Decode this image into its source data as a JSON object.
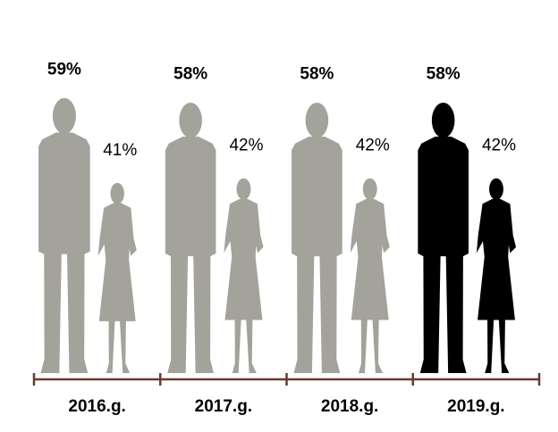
{
  "chart_data": {
    "type": "pictograph",
    "categories": [
      "2016.g.",
      "2017.g.",
      "2018.g.",
      "2019.g."
    ],
    "series": [
      {
        "values": [
          59,
          58,
          58,
          58
        ],
        "value_labels": [
          "59%",
          "58%",
          "58%",
          "58%"
        ],
        "colors": [
          "#a3a29b",
          "#a3a29b",
          "#a3a29b",
          "#000000"
        ]
      },
      {
        "values": [
          41,
          42,
          42,
          42
        ],
        "value_labels": [
          "41%",
          "42%",
          "42%",
          "42%"
        ],
        "colors": [
          "#a3a29b",
          "#a3a29b",
          "#a3a29b",
          "#000000"
        ]
      }
    ],
    "axis_color": "#6b3a2e"
  }
}
